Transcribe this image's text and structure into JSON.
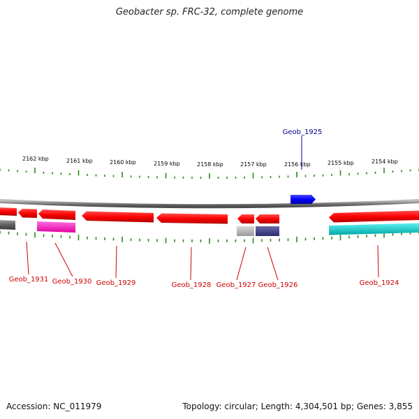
{
  "title": "Geobacter sp. FRC-32, complete genome",
  "footer": {
    "accession": "Accession: NC_011979",
    "summary": "Topology: circular; Length: 4,304,501 bp; Genes: 3,855"
  },
  "colors": {
    "forward_highlight": "#0000ff",
    "reverse_gene": "#ff0000",
    "backbone": "#808080",
    "tick": "#2a8a1a",
    "label_forward": "#00008b",
    "label_reverse": "#cc0000"
  },
  "ticks": [
    {
      "label": "2162 kbp"
    },
    {
      "label": "2161 kbp"
    },
    {
      "label": "2160 kbp"
    },
    {
      "label": "2159 kbp"
    },
    {
      "label": "2158 kbp"
    },
    {
      "label": "2157 kbp"
    },
    {
      "label": "2156 kbp"
    },
    {
      "label": "2155 kbp"
    },
    {
      "label": "2154 kbp"
    }
  ],
  "genes": [
    {
      "name": "Geob_1925",
      "strand": "forward"
    },
    {
      "name": "Geob_1924",
      "strand": "reverse"
    },
    {
      "name": "Geob_1926",
      "strand": "reverse"
    },
    {
      "name": "Geob_1927",
      "strand": "reverse"
    },
    {
      "name": "Geob_1928",
      "strand": "reverse"
    },
    {
      "name": "Geob_1929",
      "strand": "reverse"
    },
    {
      "name": "Geob_1930",
      "strand": "reverse"
    },
    {
      "name": "Geob_1931",
      "strand": "reverse"
    }
  ]
}
